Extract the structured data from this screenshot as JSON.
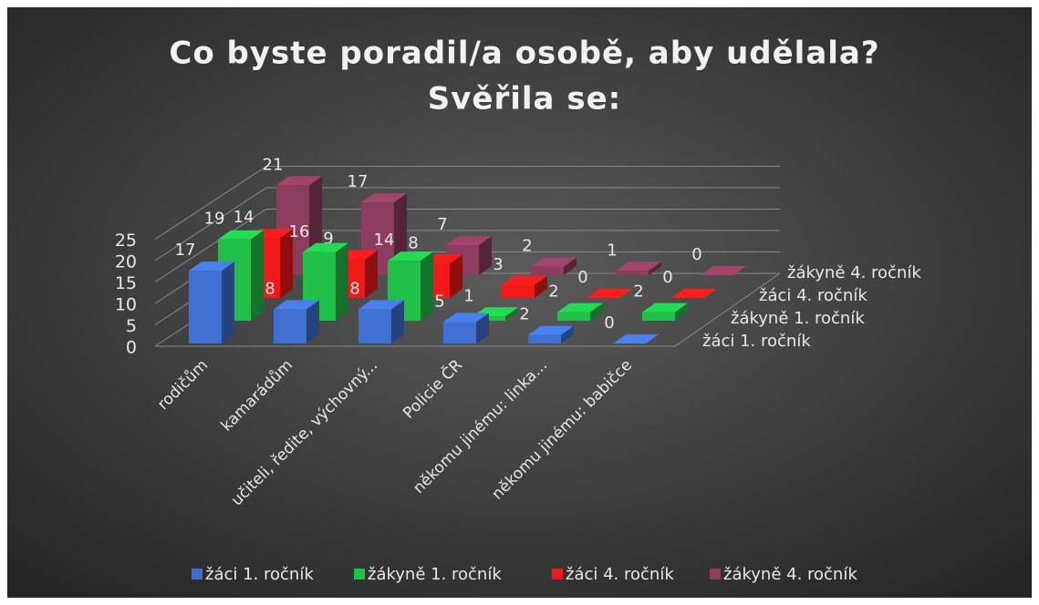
{
  "chart_data": {
    "type": "bar3d",
    "title": [
      "Co byste poradil/a osobě, aby udělala?",
      "Svěřila se:"
    ],
    "categories": [
      "rodičům",
      "kamarádům",
      "učiteli, ředite, výchovný...",
      "Policie ČR",
      "někomu jinému: linka...",
      "někomu jinému: babičce"
    ],
    "series": [
      {
        "name": "žáci 1. ročník",
        "color": "#3f6fd1",
        "values": [
          17,
          8,
          8,
          5,
          2,
          0
        ]
      },
      {
        "name": "žákyně 1. ročník",
        "color": "#1fbf48",
        "values": [
          19,
          16,
          14,
          1,
          2,
          2
        ]
      },
      {
        "name": "žáci 4. ročník",
        "color": "#f01818",
        "values": [
          14,
          9,
          8,
          3,
          0,
          0
        ]
      },
      {
        "name": "žákyně 4. ročník",
        "color": "#8c3c5e",
        "values": [
          21,
          17,
          7,
          2,
          1,
          0
        ]
      }
    ],
    "ylim": [
      0,
      25
    ],
    "yticks": [
      0,
      5,
      10,
      15,
      20,
      25
    ],
    "grid": true,
    "legend": "bottom"
  }
}
